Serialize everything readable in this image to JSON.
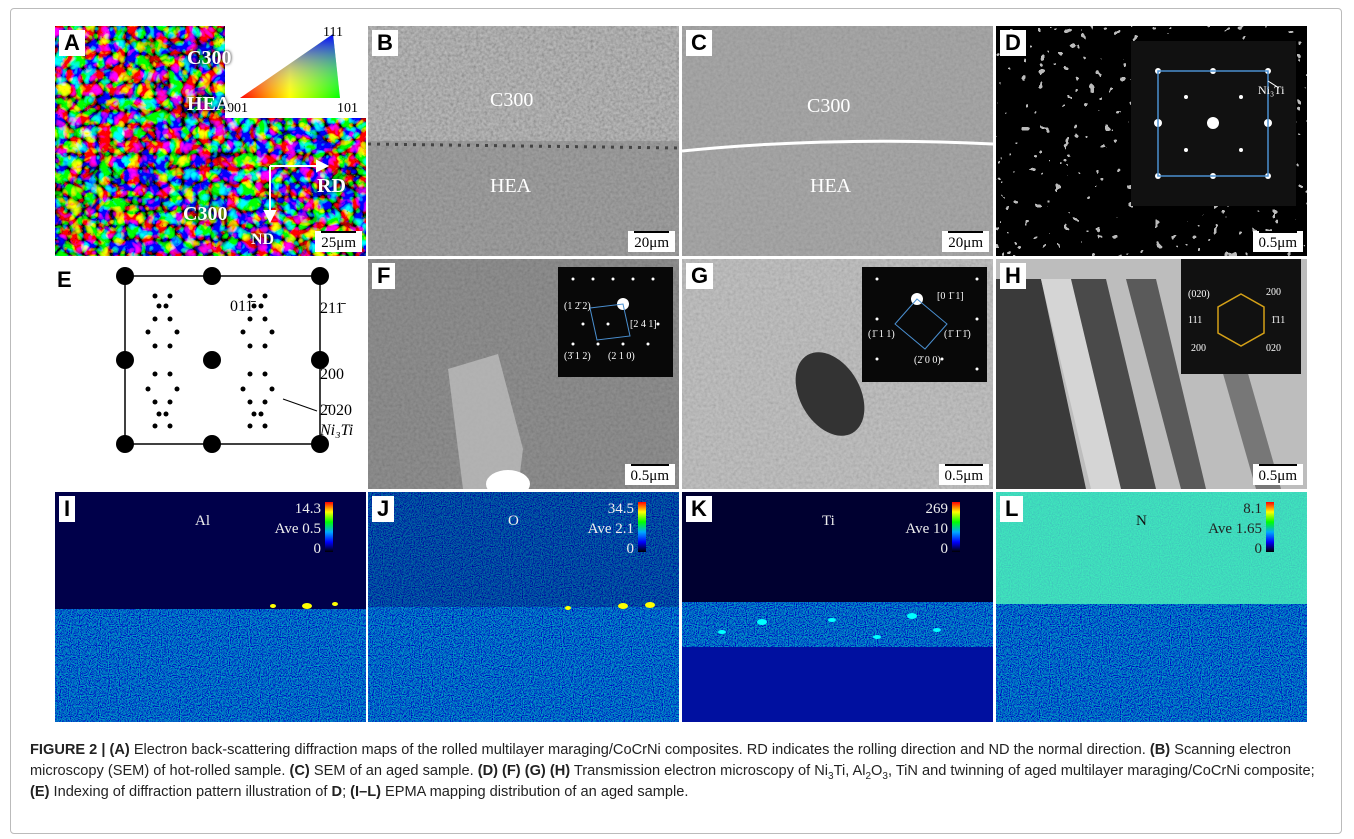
{
  "panels": [
    {
      "label": "A",
      "texts": [
        "C300",
        "HEA",
        "C300",
        "RD",
        "ND",
        "25μm",
        "111",
        "001",
        "101"
      ]
    },
    {
      "label": "B",
      "texts": [
        "C300",
        "HEA",
        "20μm"
      ]
    },
    {
      "label": "C",
      "texts": [
        "C300",
        "HEA",
        "20μm"
      ]
    },
    {
      "label": "D",
      "texts": [
        "Ni₃Ti",
        "0.5μm"
      ]
    },
    {
      "label": "E",
      "texts": [
        "011̄",
        "211̄",
        "200",
        "2̄020",
        "Ni₃Ti"
      ]
    },
    {
      "label": "F",
      "texts": [
        "(1 2̄ 2)",
        "[2 4 1]",
        "(3̄ 1 2)",
        "(2 1 0)",
        "0.5μm"
      ]
    },
    {
      "label": "G",
      "texts": [
        "[0 1̄ 1]",
        "(1̄ 1 1)",
        "(1̄ 1̄ 1̄)",
        "(2̄ 0 0)",
        "0.5μm"
      ]
    },
    {
      "label": "H",
      "texts": [
        "(020)",
        "200",
        "111",
        "1̄11",
        "200",
        "020",
        "0.5μm"
      ]
    },
    {
      "label": "I",
      "texts": [
        "Al",
        "14.3",
        "Ave 0.5",
        "0"
      ]
    },
    {
      "label": "J",
      "texts": [
        "O",
        "34.5",
        "Ave 2.1",
        "0"
      ]
    },
    {
      "label": "K",
      "texts": [
        "Ti",
        "269",
        "Ave 10",
        "0"
      ]
    },
    {
      "label": "L",
      "texts": [
        "N",
        "8.1",
        "Ave 1.65",
        "0"
      ]
    }
  ],
  "caption": [
    "FIGURE 2 | (A)",
    " Electron back-scattering diffraction maps of the rolled multilayer maraging/CoCrNi composites. RD indicates the rolling direction and ND the normal direction. ",
    "(B)",
    " Scanning electron microscopy (SEM) of hot-rolled sample. ",
    "(C)",
    " SEM of an aged sample. ",
    "(D) (F) (G) (H)",
    " Transmission electron microscopy of Ni",
    "3",
    "Ti, Al",
    "2",
    "O",
    "3",
    ", TiN and twinning of aged multilayer maraging/CoCrNi composite; ",
    "(E)",
    " Indexing of diffraction pattern illustration of ",
    "D",
    "; ",
    "(I–L)",
    " EPMA mapping distribution of an aged sample."
  ]
}
